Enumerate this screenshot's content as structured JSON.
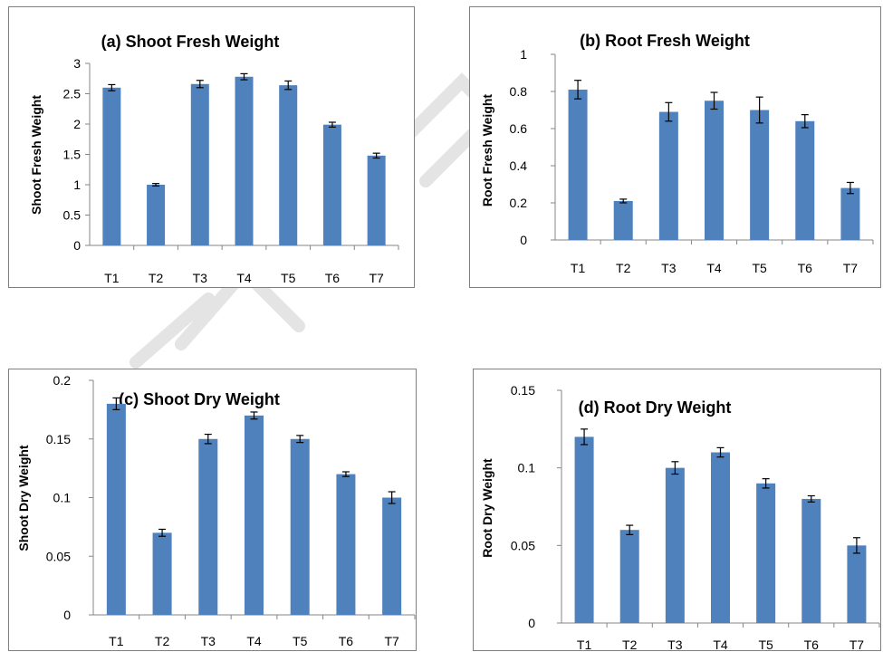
{
  "chart_data": [
    {
      "type": "bar",
      "title": "(a) Shoot Fresh Weight",
      "ylabel": "Shoot Fresh Weight",
      "xlabel": "",
      "categories": [
        "T1",
        "T2",
        "T3",
        "T4",
        "T5",
        "T6",
        "T7"
      ],
      "values": [
        2.6,
        1.0,
        2.66,
        2.78,
        2.64,
        1.99,
        1.48
      ],
      "errors": [
        0.05,
        0.02,
        0.06,
        0.05,
        0.07,
        0.04,
        0.04
      ],
      "ylim": [
        0,
        3
      ],
      "yticks": [
        "0",
        "0.5",
        "1",
        "1.5",
        "2",
        "2.5",
        "3"
      ],
      "ytick_values": [
        0,
        0.5,
        1,
        1.5,
        2,
        2.5,
        3
      ],
      "grid": false,
      "color": "#4f81bd"
    },
    {
      "type": "bar",
      "title": "(b) Root Fresh Weight",
      "ylabel": "Root Fresh Weight",
      "xlabel": "",
      "categories": [
        "T1",
        "T2",
        "T3",
        "T4",
        "T5",
        "T6",
        "T7"
      ],
      "values": [
        0.81,
        0.21,
        0.69,
        0.75,
        0.7,
        0.64,
        0.28
      ],
      "errors": [
        0.05,
        0.01,
        0.05,
        0.045,
        0.07,
        0.035,
        0.03
      ],
      "ylim": [
        0,
        1
      ],
      "yticks": [
        "0",
        "0.2",
        "0.4",
        "0.6",
        "0.8",
        "1"
      ],
      "ytick_values": [
        0,
        0.2,
        0.4,
        0.6,
        0.8,
        1
      ],
      "grid": false,
      "color": "#4f81bd"
    },
    {
      "type": "bar",
      "title": "(c) Shoot Dry Weight",
      "ylabel": "Shoot Dry Weight",
      "xlabel": "",
      "categories": [
        "T1",
        "T2",
        "T3",
        "T4",
        "T5",
        "T6",
        "T7"
      ],
      "values": [
        0.18,
        0.07,
        0.15,
        0.17,
        0.15,
        0.12,
        0.1
      ],
      "errors": [
        0.005,
        0.003,
        0.004,
        0.003,
        0.003,
        0.002,
        0.005
      ],
      "ylim": [
        0,
        0.2
      ],
      "yticks": [
        "0",
        "0.05",
        "0.1",
        "0.15",
        "0.2"
      ],
      "ytick_values": [
        0,
        0.05,
        0.1,
        0.15,
        0.2
      ],
      "grid": false,
      "color": "#4f81bd"
    },
    {
      "type": "bar",
      "title": "(d) Root Dry Weight",
      "ylabel": "Root Dry Weight",
      "xlabel": "",
      "categories": [
        "T1",
        "T2",
        "T3",
        "T4",
        "T5",
        "T6",
        "T7"
      ],
      "values": [
        0.12,
        0.06,
        0.1,
        0.11,
        0.09,
        0.08,
        0.05
      ],
      "errors": [
        0.005,
        0.003,
        0.004,
        0.003,
        0.003,
        0.002,
        0.005
      ],
      "ylim": [
        0,
        0.15
      ],
      "yticks": [
        "0",
        "0.05",
        "0.1",
        "0.15"
      ],
      "ytick_values": [
        0,
        0.05,
        0.1,
        0.15
      ],
      "grid": false,
      "color": "#4f81bd"
    }
  ]
}
